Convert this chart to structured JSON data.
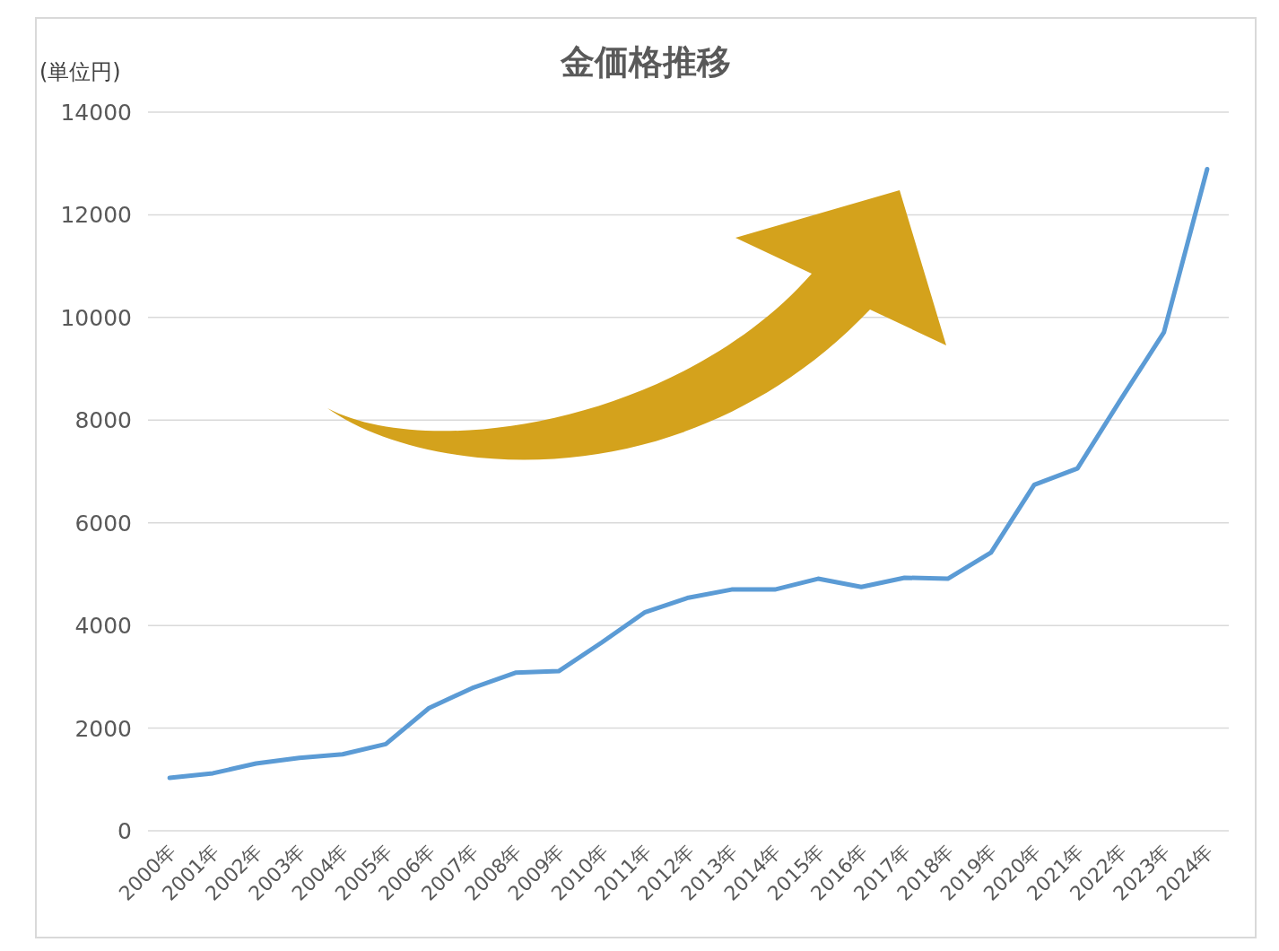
{
  "chart_data": {
    "type": "line",
    "title": "金価格推移",
    "ylabel": "(単位円)",
    "categories": [
      "2000年",
      "2001年",
      "2002年",
      "2003年",
      "2004年",
      "2005年",
      "2006年",
      "2007年",
      "2008年",
      "2009年",
      "2010年",
      "2011年",
      "2012年",
      "2013年",
      "2014年",
      "2015年",
      "2016年",
      "2017年",
      "2018年",
      "2019年",
      "2020年",
      "2021年",
      "2022年",
      "2023年",
      "2024年"
    ],
    "series": [
      {
        "color": "#5b9bd5",
        "values": [
          1030,
          1120,
          1310,
          1420,
          1490,
          1690,
          2390,
          2780,
          3080,
          3110,
          3670,
          4260,
          4540,
          4700,
          4700,
          4910,
          4750,
          4930,
          4910,
          5420,
          6740,
          7060,
          8400,
          9710,
          12890
        ]
      }
    ],
    "ylim": [
      0,
      14000
    ],
    "yticks": [
      0,
      2000,
      4000,
      6000,
      8000,
      10000,
      12000,
      14000
    ],
    "grid": "y"
  }
}
